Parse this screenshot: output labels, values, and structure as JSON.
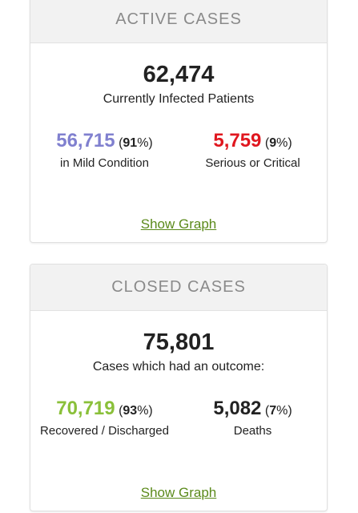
{
  "active": {
    "header": "ACTIVE CASES",
    "total": "62,474",
    "total_label": "Currently Infected Patients",
    "mild": {
      "value": "56,715",
      "pct": "91",
      "label": "in Mild Condition",
      "color": "#8080cf"
    },
    "serious": {
      "value": "5,759",
      "pct": "9",
      "label": "Serious or Critical",
      "color": "#e0171f"
    },
    "show_graph": "Show Graph"
  },
  "closed": {
    "header": "CLOSED CASES",
    "total": "75,801",
    "total_label": "Cases which had an outcome:",
    "recovered": {
      "value": "70,719",
      "pct": "93",
      "label": "Recovered / Discharged",
      "color": "#8ac03a"
    },
    "deaths": {
      "value": "5,082",
      "pct": "7",
      "label": "Deaths",
      "color": "#222222"
    },
    "show_graph": "Show Graph"
  }
}
